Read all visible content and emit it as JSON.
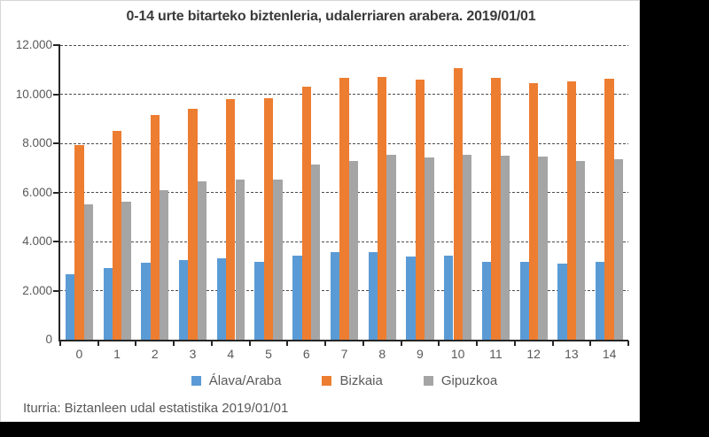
{
  "chart_data": {
    "type": "bar",
    "title": "0-14 urte bitarteko biztenleria, udalerriaren arabera. 2019/01/01",
    "categories": [
      "0",
      "1",
      "2",
      "3",
      "4",
      "5",
      "6",
      "7",
      "8",
      "9",
      "10",
      "11",
      "12",
      "13",
      "14"
    ],
    "series": [
      {
        "name": "Álava/Araba",
        "color": "#5B9BD5",
        "values": [
          2650,
          2930,
          3130,
          3260,
          3330,
          3170,
          3440,
          3560,
          3570,
          3390,
          3440,
          3170,
          3170,
          3090,
          3180
        ]
      },
      {
        "name": "Bizkaia",
        "color": "#ED7D31",
        "values": [
          7920,
          8510,
          9150,
          9390,
          9810,
          9850,
          10320,
          10650,
          10700,
          10600,
          11050,
          10650,
          10450,
          10510,
          10620
        ]
      },
      {
        "name": "Gipuzkoa",
        "color": "#A5A5A5",
        "values": [
          5500,
          5620,
          6100,
          6450,
          6510,
          6510,
          7150,
          7290,
          7520,
          7430,
          7530,
          7480,
          7470,
          7290,
          7350
        ]
      }
    ],
    "xlabel": "",
    "ylabel": "",
    "ylim": [
      0,
      12000
    ],
    "ytick_step": 2000,
    "ytick_labels": [
      "0",
      "2.000",
      "4.000",
      "6.000",
      "8.000",
      "10.000",
      "12.000"
    ],
    "grid": "horizontal-dashed",
    "legend_position": "bottom"
  },
  "footer": {
    "source": "Iturria: Biztanleen udal estatistika 2019/01/01"
  },
  "colors": {
    "letterbox": "#000000",
    "card_background": "#ffffff",
    "axis": "#262626",
    "gridline": "#4d4d4d",
    "tick_label": "#595959",
    "title_text": "#3a3a3a"
  }
}
